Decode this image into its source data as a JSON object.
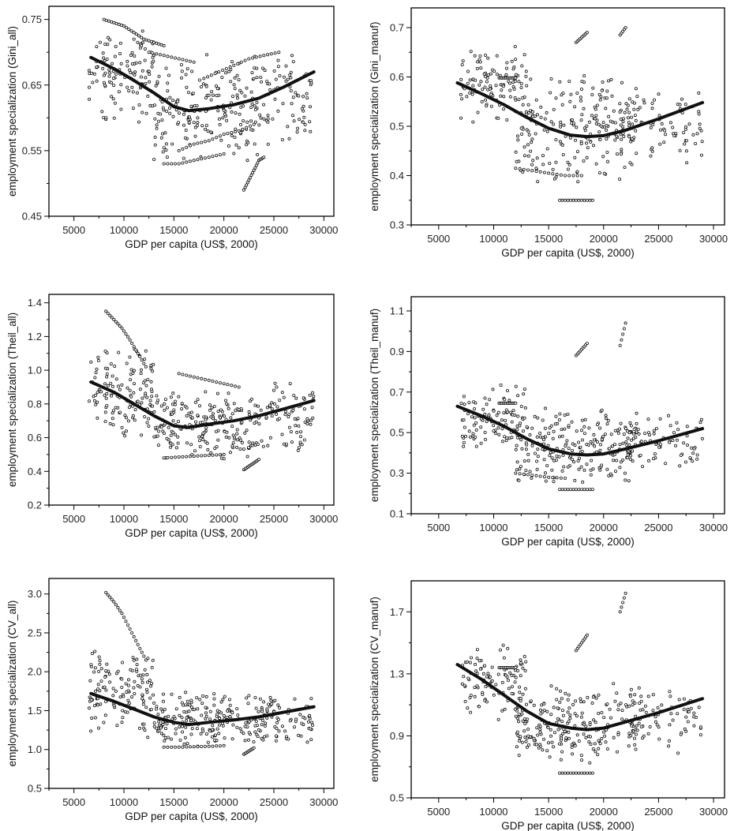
{
  "chart_data": [
    {
      "type": "scatter",
      "xlabel": "GDP per capita (US$, 2000)",
      "ylabel": "employment specialization (Gini_all)",
      "xlim": [
        2500,
        31000
      ],
      "ylim": [
        0.45,
        0.77
      ],
      "xticks": [
        5000,
        10000,
        15000,
        20000,
        25000,
        30000
      ],
      "yticks": [
        0.45,
        0.55,
        0.65,
        0.75
      ],
      "ytick_labels": [
        "0.45",
        "0.55",
        "0.65",
        "0.75"
      ],
      "fit_line": {
        "x": [
          6700,
          9000,
          11000,
          13000,
          15000,
          16500,
          18500,
          21000,
          23500,
          26000,
          29000
        ],
        "y": [
          0.692,
          0.675,
          0.657,
          0.638,
          0.617,
          0.611,
          0.614,
          0.62,
          0.63,
          0.647,
          0.67
        ]
      },
      "point_clouds": [
        {
          "x_range": [
            6500,
            13000
          ],
          "y_range": [
            0.58,
            0.75
          ],
          "count": 120
        },
        {
          "x_range": [
            13000,
            24000
          ],
          "y_range": [
            0.53,
            0.7
          ],
          "count": 200
        },
        {
          "x_range": [
            24000,
            29000
          ],
          "y_range": [
            0.55,
            0.71
          ],
          "count": 70
        }
      ],
      "point_tracks": [
        {
          "x": [
            8000,
            9000,
            10000,
            11000,
            12000,
            13000,
            14000
          ],
          "y": [
            0.75,
            0.745,
            0.74,
            0.73,
            0.72,
            0.715,
            0.71
          ]
        },
        {
          "x": [
            11000,
            12500,
            14000,
            15500,
            17000
          ],
          "y": [
            0.72,
            0.7,
            0.695,
            0.69,
            0.685
          ]
        },
        {
          "x": [
            14000,
            15500,
            17000,
            18500,
            20000
          ],
          "y": [
            0.53,
            0.53,
            0.535,
            0.54,
            0.545
          ]
        },
        {
          "x": [
            22000,
            22500,
            23000,
            23500,
            24000
          ],
          "y": [
            0.49,
            0.505,
            0.52,
            0.535,
            0.54
          ]
        },
        {
          "x": [
            15500,
            17000,
            18500,
            20000,
            21500,
            23000
          ],
          "y": [
            0.55,
            0.56,
            0.565,
            0.575,
            0.58,
            0.59
          ]
        },
        {
          "x": [
            18000,
            19500,
            21000,
            22500,
            24000,
            25500
          ],
          "y": [
            0.66,
            0.67,
            0.68,
            0.69,
            0.695,
            0.7
          ]
        }
      ]
    },
    {
      "type": "scatter",
      "xlabel": "GDP per capita (US$, 2000)",
      "ylabel": "employment specialization (Gini_manuf)",
      "xlim": [
        2500,
        31000
      ],
      "ylim": [
        0.3,
        0.74
      ],
      "xticks": [
        5000,
        10000,
        15000,
        20000,
        25000,
        30000
      ],
      "yticks": [
        0.3,
        0.4,
        0.5,
        0.6,
        0.7
      ],
      "ytick_labels": [
        "0.3",
        "0.4",
        "0.5",
        "0.6",
        "0.7"
      ],
      "fit_line": {
        "x": [
          6700,
          9000,
          11000,
          13000,
          15000,
          17000,
          18500,
          20000,
          22000,
          25000,
          29000
        ],
        "y": [
          0.588,
          0.565,
          0.543,
          0.518,
          0.496,
          0.482,
          0.479,
          0.481,
          0.492,
          0.515,
          0.548
        ]
      },
      "point_clouds": [
        {
          "x_range": [
            7000,
            13000
          ],
          "y_range": [
            0.5,
            0.67
          ],
          "count": 110
        },
        {
          "x_range": [
            12000,
            23000
          ],
          "y_range": [
            0.38,
            0.62
          ],
          "count": 220
        },
        {
          "x_range": [
            22000,
            29000
          ],
          "y_range": [
            0.42,
            0.58
          ],
          "count": 80
        }
      ],
      "point_tracks": [
        {
          "x": [
            10500,
            11000,
            11500,
            12000
          ],
          "y": [
            0.598,
            0.598,
            0.598,
            0.598
          ]
        },
        {
          "x": [
            16000,
            17000,
            18000,
            19000
          ],
          "y": [
            0.35,
            0.35,
            0.35,
            0.35
          ]
        },
        {
          "x": [
            12000,
            13500,
            15000,
            16500,
            18000
          ],
          "y": [
            0.415,
            0.41,
            0.405,
            0.4,
            0.4
          ]
        },
        {
          "x": [
            17500,
            18000,
            18500
          ],
          "y": [
            0.67,
            0.68,
            0.69
          ]
        },
        {
          "x": [
            21500,
            22000
          ],
          "y": [
            0.685,
            0.7
          ]
        }
      ]
    },
    {
      "type": "scatter",
      "xlabel": "GDP per capita (US$, 2000)",
      "ylabel": "employment specialization (Theil_all)",
      "xlim": [
        2500,
        31000
      ],
      "ylim": [
        0.2,
        1.45
      ],
      "xticks": [
        5000,
        10000,
        15000,
        20000,
        25000,
        30000
      ],
      "yticks": [
        0.2,
        0.4,
        0.6,
        0.8,
        1.0,
        1.2,
        1.4
      ],
      "ytick_labels": [
        "0.2",
        "0.4",
        "0.6",
        "0.8",
        "1.0",
        "1.2",
        "1.4"
      ],
      "fit_line": {
        "x": [
          6700,
          9000,
          11000,
          13000,
          15000,
          16500,
          18500,
          21000,
          23500,
          26000,
          29000
        ],
        "y": [
          0.93,
          0.87,
          0.8,
          0.73,
          0.67,
          0.66,
          0.68,
          0.7,
          0.73,
          0.77,
          0.82
        ]
      },
      "point_clouds": [
        {
          "x_range": [
            6500,
            13000
          ],
          "y_range": [
            0.55,
            1.15
          ],
          "count": 130
        },
        {
          "x_range": [
            13000,
            24000
          ],
          "y_range": [
            0.45,
            0.9
          ],
          "count": 210
        },
        {
          "x_range": [
            24000,
            29000
          ],
          "y_range": [
            0.5,
            0.95
          ],
          "count": 70
        }
      ],
      "point_tracks": [
        {
          "x": [
            8200,
            9000,
            9800,
            10600,
            11400,
            12200
          ],
          "y": [
            1.35,
            1.3,
            1.25,
            1.18,
            1.1,
            1.02
          ]
        },
        {
          "x": [
            14000,
            15500,
            17000,
            18500,
            20000
          ],
          "y": [
            0.48,
            0.485,
            0.49,
            0.495,
            0.5
          ]
        },
        {
          "x": [
            22000,
            22500,
            23000,
            23500
          ],
          "y": [
            0.41,
            0.43,
            0.45,
            0.47
          ]
        },
        {
          "x": [
            15500,
            17000,
            18500,
            20000,
            21500
          ],
          "y": [
            0.98,
            0.96,
            0.94,
            0.92,
            0.9
          ]
        }
      ]
    },
    {
      "type": "scatter",
      "xlabel": "GDP per capita (US$, 2000)",
      "ylabel": "employment specialization (Theil_manuf)",
      "xlim": [
        2500,
        31000
      ],
      "ylim": [
        0.1,
        1.17
      ],
      "xticks": [
        5000,
        10000,
        15000,
        20000,
        25000,
        30000
      ],
      "yticks": [
        0.1,
        0.3,
        0.5,
        0.7,
        0.9,
        1.1
      ],
      "ytick_labels": [
        "0.1",
        "0.3",
        "0.5",
        "0.7",
        "0.9",
        "1.1"
      ],
      "fit_line": {
        "x": [
          6700,
          9000,
          11000,
          13000,
          15000,
          17000,
          18500,
          20000,
          22000,
          25000,
          29000
        ],
        "y": [
          0.63,
          0.58,
          0.53,
          0.47,
          0.42,
          0.395,
          0.39,
          0.395,
          0.42,
          0.46,
          0.52
        ]
      },
      "point_clouds": [
        {
          "x_range": [
            7000,
            13000
          ],
          "y_range": [
            0.4,
            0.75
          ],
          "count": 110
        },
        {
          "x_range": [
            12000,
            23000
          ],
          "y_range": [
            0.22,
            0.65
          ],
          "count": 220
        },
        {
          "x_range": [
            22000,
            29000
          ],
          "y_range": [
            0.3,
            0.6
          ],
          "count": 80
        }
      ],
      "point_tracks": [
        {
          "x": [
            10500,
            11000,
            11500,
            12000
          ],
          "y": [
            0.645,
            0.645,
            0.645,
            0.645
          ]
        },
        {
          "x": [
            16000,
            17000,
            18000,
            19000
          ],
          "y": [
            0.22,
            0.22,
            0.22,
            0.22
          ]
        },
        {
          "x": [
            17500,
            18000,
            18500
          ],
          "y": [
            0.88,
            0.91,
            0.94
          ]
        },
        {
          "x": [
            21500,
            22000
          ],
          "y": [
            0.93,
            1.04
          ]
        },
        {
          "x": [
            12000,
            13500,
            15000,
            16500
          ],
          "y": [
            0.3,
            0.29,
            0.28,
            0.275
          ]
        }
      ]
    },
    {
      "type": "scatter",
      "xlabel": "GDP per capita (US$, 2000)",
      "ylabel": "employment specialization (CV_all)",
      "xlim": [
        2500,
        31000
      ],
      "ylim": [
        0.5,
        3.2
      ],
      "xticks": [
        5000,
        10000,
        15000,
        20000,
        25000,
        30000
      ],
      "yticks": [
        0.5,
        1.0,
        1.5,
        2.0,
        2.5,
        3.0
      ],
      "ytick_labels": [
        "0.5",
        "1.0",
        "1.5",
        "2.0",
        "2.5",
        "3.0"
      ],
      "fit_line": {
        "x": [
          6700,
          9000,
          11000,
          13000,
          15000,
          16500,
          18500,
          21000,
          23500,
          26000,
          29000
        ],
        "y": [
          1.72,
          1.62,
          1.52,
          1.42,
          1.35,
          1.32,
          1.35,
          1.38,
          1.42,
          1.48,
          1.55
        ]
      },
      "point_clouds": [
        {
          "x_range": [
            6500,
            13000
          ],
          "y_range": [
            1.1,
            2.4
          ],
          "count": 130
        },
        {
          "x_range": [
            13000,
            24000
          ],
          "y_range": [
            1.0,
            1.75
          ],
          "count": 210
        },
        {
          "x_range": [
            24000,
            29000
          ],
          "y_range": [
            1.05,
            1.75
          ],
          "count": 70
        }
      ],
      "point_tracks": [
        {
          "x": [
            8200,
            9000,
            9800,
            10600,
            11400,
            12200
          ],
          "y": [
            3.02,
            2.9,
            2.75,
            2.55,
            2.35,
            2.15
          ]
        },
        {
          "x": [
            14000,
            15500,
            17000,
            18500,
            20000
          ],
          "y": [
            1.03,
            1.03,
            1.035,
            1.04,
            1.05
          ]
        },
        {
          "x": [
            22000,
            22500,
            23000
          ],
          "y": [
            0.94,
            0.98,
            1.02
          ]
        }
      ]
    },
    {
      "type": "scatter",
      "xlabel": "GDP per capita (US$, 2000)",
      "ylabel": "employment specialization (CV_manuf)",
      "xlim": [
        2500,
        31000
      ],
      "ylim": [
        0.5,
        1.9
      ],
      "xticks": [
        5000,
        10000,
        15000,
        20000,
        25000,
        30000
      ],
      "yticks": [
        0.5,
        0.9,
        1.3,
        1.7
      ],
      "ytick_labels": [
        "0.5",
        "0.9",
        "1.3",
        "1.7"
      ],
      "fit_line": {
        "x": [
          6700,
          9000,
          11000,
          13000,
          15000,
          17000,
          18500,
          20000,
          22000,
          25000,
          29000
        ],
        "y": [
          1.36,
          1.26,
          1.16,
          1.06,
          0.98,
          0.95,
          0.94,
          0.95,
          0.99,
          1.05,
          1.14
        ]
      },
      "point_clouds": [
        {
          "x_range": [
            7000,
            13000
          ],
          "y_range": [
            1.0,
            1.5
          ],
          "count": 110
        },
        {
          "x_range": [
            12000,
            23000
          ],
          "y_range": [
            0.7,
            1.25
          ],
          "count": 220
        },
        {
          "x_range": [
            22000,
            29000
          ],
          "y_range": [
            0.78,
            1.25
          ],
          "count": 80
        }
      ],
      "point_tracks": [
        {
          "x": [
            10500,
            11000,
            11500,
            12000
          ],
          "y": [
            1.34,
            1.34,
            1.34,
            1.34
          ]
        },
        {
          "x": [
            16000,
            17000,
            18000,
            19000
          ],
          "y": [
            0.66,
            0.66,
            0.66,
            0.66
          ]
        },
        {
          "x": [
            17500,
            18000,
            18500
          ],
          "y": [
            1.45,
            1.5,
            1.55
          ]
        },
        {
          "x": [
            21500,
            22000
          ],
          "y": [
            1.7,
            1.82
          ]
        }
      ]
    }
  ]
}
